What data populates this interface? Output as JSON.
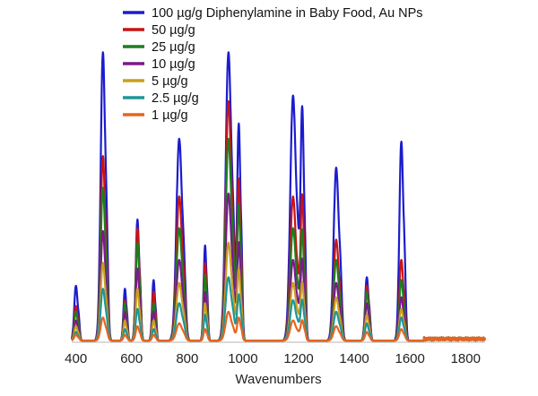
{
  "chart_data": {
    "type": "line",
    "title": "",
    "xlabel": "Wavenumbers",
    "ylabel": "",
    "xlim": [
      385,
      1870
    ],
    "ylim": [
      0,
      100
    ],
    "xticks": [
      400,
      600,
      800,
      1000,
      1200,
      1400,
      1600,
      1800
    ],
    "grid": false,
    "legend_position": "top-right",
    "peaks": [
      {
        "center": 400,
        "width": 6,
        "relative_heights": [
          0.19,
          0.62,
          0.52,
          0.36,
          0.27,
          0.17,
          0.1
        ]
      },
      {
        "center": 497,
        "width": 8,
        "relative_heights": [
          1.0,
          0.64,
          0.53,
          0.38,
          0.27,
          0.18,
          0.08
        ]
      },
      {
        "center": 576,
        "width": 5,
        "relative_heights": [
          0.18,
          0.78,
          0.72,
          0.55,
          0.38,
          0.22,
          0.1
        ]
      },
      {
        "center": 621,
        "width": 6,
        "relative_heights": [
          0.42,
          0.92,
          0.81,
          0.6,
          0.42,
          0.26,
          0.12
        ]
      },
      {
        "center": 679,
        "width": 5,
        "relative_heights": [
          0.21,
          0.81,
          0.62,
          0.45,
          0.33,
          0.21,
          0.1
        ]
      },
      {
        "center": 771,
        "width": 10,
        "relative_heights": [
          0.7,
          0.72,
          0.56,
          0.4,
          0.28,
          0.18,
          0.08
        ]
      },
      {
        "center": 864,
        "width": 5,
        "relative_heights": [
          0.33,
          0.83,
          0.69,
          0.52,
          0.38,
          0.26,
          0.12
        ]
      },
      {
        "center": 948,
        "width": 10,
        "relative_heights": [
          1.0,
          0.83,
          0.7,
          0.51,
          0.34,
          0.22,
          0.1
        ]
      },
      {
        "center": 985,
        "width": 6,
        "relative_heights": [
          0.75,
          0.75,
          0.63,
          0.46,
          0.33,
          0.21,
          0.1
        ]
      },
      {
        "center": 1180,
        "width": 10,
        "relative_heights": [
          0.85,
          0.59,
          0.46,
          0.33,
          0.24,
          0.16,
          0.08
        ]
      },
      {
        "center": 1213,
        "width": 6,
        "relative_heights": [
          0.8,
          0.62,
          0.48,
          0.35,
          0.25,
          0.16,
          0.08
        ]
      },
      {
        "center": 1335,
        "width": 9,
        "relative_heights": [
          0.6,
          0.59,
          0.47,
          0.34,
          0.25,
          0.17,
          0.08
        ]
      },
      {
        "center": 1445,
        "width": 6,
        "relative_heights": [
          0.22,
          0.87,
          0.77,
          0.58,
          0.41,
          0.28,
          0.14
        ]
      },
      {
        "center": 1569,
        "width": 7,
        "relative_heights": [
          0.69,
          0.4,
          0.3,
          0.21,
          0.16,
          0.11,
          0.06
        ]
      }
    ],
    "series": [
      {
        "name": "100 µg/g Diphenylamine in Baby Food, Au NPs",
        "color": "#1c1ccd",
        "values": [
          19,
          100,
          18,
          42,
          21,
          70,
          33,
          100,
          75,
          85,
          80,
          60,
          22,
          69
        ]
      },
      {
        "name": "50 µg/g",
        "color": "#c81414",
        "values": [
          12,
          64,
          14,
          39,
          17,
          50,
          27,
          83,
          56,
          50,
          50,
          35,
          19,
          28
        ]
      },
      {
        "name": "25 µg/g",
        "color": "#1e7d1e",
        "values": [
          10,
          53,
          13,
          34,
          13,
          39,
          23,
          70,
          47,
          39,
          38,
          28,
          17,
          21
        ]
      },
      {
        "name": "10 µg/g",
        "color": "#7a1a8c",
        "values": [
          7,
          38,
          10,
          25,
          10,
          28,
          17,
          51,
          34,
          28,
          28,
          20,
          13,
          15
        ]
      },
      {
        "name": "5 µg/g",
        "color": "#c8a01e",
        "values": [
          5,
          27,
          7,
          18,
          7,
          20,
          13,
          34,
          25,
          20,
          20,
          15,
          9,
          11
        ]
      },
      {
        "name": "2.5 µg/g",
        "color": "#1e9696",
        "values": [
          3,
          18,
          4,
          11,
          4,
          13,
          9,
          22,
          16,
          14,
          14,
          10,
          6,
          8
        ]
      },
      {
        "name": "1 µg/g",
        "color": "#e8641e",
        "values": [
          2,
          8,
          2,
          5,
          2,
          6,
          4,
          10,
          8,
          7,
          7,
          5,
          3,
          4
        ]
      }
    ]
  }
}
